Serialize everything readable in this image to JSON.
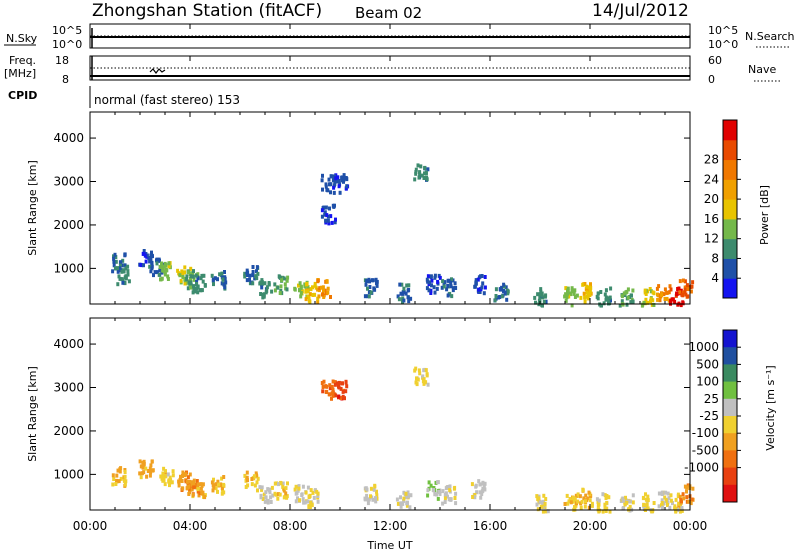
{
  "header": {
    "station": "Zhongshan Station (fitACF)",
    "beam": "Beam 02",
    "date": "14/Jul/2012"
  },
  "panels": {
    "sky": {
      "left_label": "N.Sky",
      "right_label": "N.Search",
      "ticks_left": [
        "10^5",
        "10^0"
      ],
      "ticks_right": [
        "10^5",
        "10^0"
      ]
    },
    "freq": {
      "left_label_1": "Freq.",
      "left_label_2": "[MHz]",
      "ticks_left": [
        "18",
        "8"
      ],
      "ticks_right": [
        "60",
        "0"
      ],
      "right_label": "Nave"
    },
    "cpid": {
      "label": "CPID",
      "mode": "normal (fast stereo) 153"
    }
  },
  "axes": {
    "x_ticks": [
      "00:00",
      "04:00",
      "08:00",
      "12:00",
      "16:00",
      "20:00",
      "00:00"
    ],
    "x_label": "Time UT",
    "y_label": "Slant Range [km]",
    "y_ticks": [
      "1000",
      "2000",
      "3000",
      "4000"
    ]
  },
  "colorbars": {
    "power": {
      "label": "Power [dB]",
      "ticks": [
        "4",
        "8",
        "12",
        "16",
        "20",
        "24",
        "28"
      ],
      "colors": [
        "#1414f0",
        "#1f50a8",
        "#3d8b6e",
        "#74b84a",
        "#e8c400",
        "#f0a000",
        "#f07800",
        "#e84a00",
        "#e00000"
      ]
    },
    "velocity": {
      "label": "Velocity [m s⁻¹]",
      "ticks": [
        "1000",
        "500",
        "100",
        "25",
        "-25",
        "-100",
        "-500",
        "-1000"
      ],
      "colors": [
        "#1414d0",
        "#2050a0",
        "#3a8a60",
        "#70c040",
        "#c0c0c0",
        "#f0d030",
        "#f0a020",
        "#f07010",
        "#e84010",
        "#e01010"
      ]
    }
  },
  "chart_data": [
    {
      "type": "heatmap",
      "name": "Power",
      "xlabel": "Time UT",
      "ylabel": "Slant Range [km]",
      "xlim": [
        0,
        24
      ],
      "ylim": [
        180,
        4600
      ],
      "value_label": "Power [dB]",
      "value_range": [
        0,
        30
      ],
      "points": [
        [
          1.1,
          1100,
          6
        ],
        [
          1.3,
          800,
          8
        ],
        [
          2.2,
          1200,
          4
        ],
        [
          2.6,
          1000,
          6
        ],
        [
          3.0,
          900,
          12
        ],
        [
          3.7,
          800,
          14
        ],
        [
          4.0,
          700,
          10
        ],
        [
          4.3,
          600,
          8
        ],
        [
          5.1,
          700,
          6
        ],
        [
          6.4,
          800,
          6
        ],
        [
          7.0,
          500,
          8
        ],
        [
          7.6,
          600,
          10
        ],
        [
          8.4,
          500,
          12
        ],
        [
          8.8,
          400,
          16
        ],
        [
          9.3,
          500,
          20
        ],
        [
          9.5,
          2900,
          4
        ],
        [
          9.5,
          2200,
          4
        ],
        [
          10.0,
          2900,
          4
        ],
        [
          11.2,
          500,
          6
        ],
        [
          12.5,
          400,
          6
        ],
        [
          13.2,
          3200,
          8
        ],
        [
          13.7,
          600,
          4
        ],
        [
          14.3,
          500,
          6
        ],
        [
          15.5,
          600,
          4
        ],
        [
          16.4,
          400,
          6
        ],
        [
          18.0,
          300,
          8
        ],
        [
          19.2,
          300,
          12
        ],
        [
          19.8,
          400,
          16
        ],
        [
          20.5,
          300,
          8
        ],
        [
          21.4,
          300,
          10
        ],
        [
          22.3,
          300,
          14
        ],
        [
          22.9,
          400,
          20
        ],
        [
          23.4,
          300,
          28
        ],
        [
          23.8,
          500,
          24
        ]
      ]
    },
    {
      "type": "heatmap",
      "name": "Velocity",
      "xlabel": "Time UT",
      "ylabel": "Slant Range [km]",
      "xlim": [
        0,
        24
      ],
      "ylim": [
        180,
        4600
      ],
      "value_label": "Velocity [m s⁻¹]",
      "value_range": [
        -1000,
        1000
      ],
      "points": [
        [
          1.1,
          900,
          -200
        ],
        [
          2.2,
          1100,
          -300
        ],
        [
          3.0,
          900,
          -100
        ],
        [
          3.7,
          800,
          -300
        ],
        [
          4.0,
          700,
          -400
        ],
        [
          4.3,
          600,
          -300
        ],
        [
          5.1,
          700,
          -200
        ],
        [
          6.4,
          800,
          -150
        ],
        [
          7.0,
          500,
          50
        ],
        [
          7.6,
          600,
          -100
        ],
        [
          8.4,
          500,
          80
        ],
        [
          8.8,
          400,
          -50
        ],
        [
          9.5,
          2900,
          -600
        ],
        [
          10.0,
          2900,
          -700
        ],
        [
          11.2,
          500,
          40
        ],
        [
          12.5,
          400,
          60
        ],
        [
          13.2,
          3200,
          -80
        ],
        [
          13.7,
          600,
          200
        ],
        [
          14.3,
          500,
          30
        ],
        [
          15.5,
          600,
          80
        ],
        [
          18.0,
          300,
          -50
        ],
        [
          19.2,
          300,
          -120
        ],
        [
          19.8,
          400,
          -250
        ],
        [
          20.5,
          300,
          -80
        ],
        [
          21.4,
          300,
          0
        ],
        [
          22.3,
          300,
          -60
        ],
        [
          22.9,
          400,
          10
        ],
        [
          23.4,
          300,
          -100
        ],
        [
          23.8,
          500,
          -400
        ]
      ]
    }
  ]
}
